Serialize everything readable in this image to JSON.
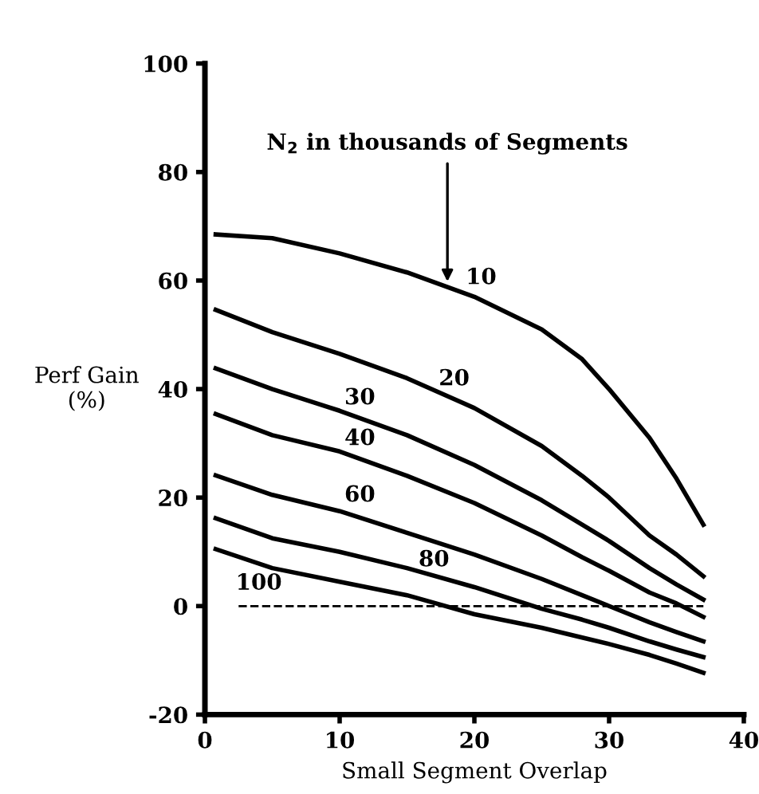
{
  "chart_data": {
    "type": "line",
    "xlabel": "Small Segment Overlap",
    "ylabel": "Perf Gain\n(%)",
    "xlim": [
      0,
      40
    ],
    "xticks": [
      0,
      10,
      20,
      30,
      40
    ],
    "ylim": [
      -20,
      100
    ],
    "yticks": [
      -20,
      0,
      20,
      40,
      60,
      80,
      100
    ],
    "grid": false,
    "marker": "none",
    "line_style": "solid",
    "x": [
      0.8,
      5,
      10,
      15,
      20,
      25,
      28,
      30,
      33,
      35,
      37
    ],
    "series": [
      {
        "name": "10",
        "color": "#000000",
        "values": [
          68.5,
          67.8,
          65,
          61.5,
          57,
          51,
          45.5,
          40,
          31,
          23.5,
          15
        ]
      },
      {
        "name": "20",
        "color": "#000000",
        "values": [
          54.6,
          50.5,
          46.5,
          42,
          36.5,
          29.5,
          24,
          20,
          13,
          9.5,
          5.5
        ]
      },
      {
        "name": "30",
        "color": "#000000",
        "values": [
          43.8,
          40,
          36,
          31.5,
          26,
          19.5,
          15,
          12,
          7,
          4,
          1.2
        ]
      },
      {
        "name": "40",
        "color": "#000000",
        "values": [
          35.4,
          31.5,
          28.5,
          24,
          19,
          13,
          9,
          6.5,
          2.5,
          0.5,
          -2
        ]
      },
      {
        "name": "60",
        "color": "#000000",
        "values": [
          24.1,
          20.5,
          17.5,
          13.5,
          9.5,
          5,
          2,
          0,
          -3,
          -4.8,
          -6.5
        ]
      },
      {
        "name": "80",
        "color": "#000000",
        "values": [
          16.2,
          12.5,
          10,
          7,
          3.5,
          -0.5,
          -2.5,
          -4,
          -6.5,
          -8,
          -9.4
        ]
      },
      {
        "name": "100",
        "color": "#000000",
        "values": [
          10.5,
          7,
          4.5,
          2,
          -1.5,
          -4,
          -5.8,
          -7,
          -9,
          -10.6,
          -12.3
        ]
      }
    ],
    "ref_lines": [
      {
        "axis": "y",
        "value": 0,
        "color": "#000000",
        "line_style": "dashed"
      }
    ],
    "annotations": [
      {
        "text": "N$_{2}$ in thousands of Segments",
        "x": 18,
        "y": 59
      }
    ]
  }
}
